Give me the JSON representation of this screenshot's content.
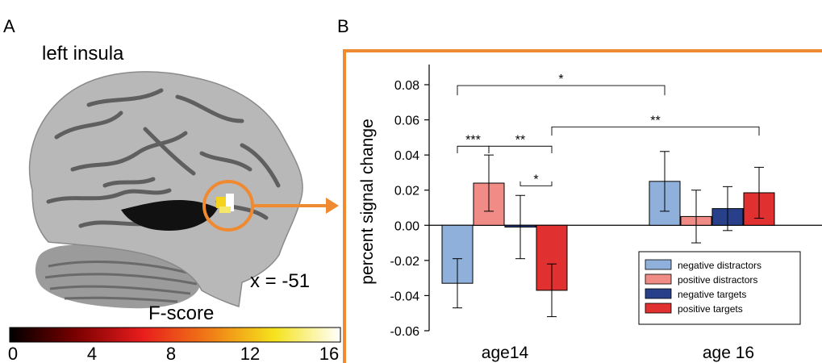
{
  "panels": {
    "a": {
      "letter": "A",
      "title": "left insula",
      "coordinate": "x = -51",
      "colorbar": {
        "title": "F-score",
        "ticks": [
          "0",
          "4",
          "8",
          "12",
          "16"
        ],
        "range": [
          0,
          16
        ],
        "colors": [
          "#000000",
          "#7a0000",
          "#e81c1c",
          "#f07a16",
          "#f5e31c",
          "#ffffff"
        ]
      },
      "highlight_color": "#f08a30"
    },
    "b": {
      "letter": "B"
    }
  },
  "chart_data": {
    "type": "bar",
    "title": "",
    "xlabel": "",
    "ylabel": "percent signal change",
    "categories": [
      "age14",
      "age 16"
    ],
    "ylim": [
      -0.06,
      0.09
    ],
    "yticks": [
      "0.08",
      "0.06",
      "0.04",
      "0.02",
      "0.00",
      "-0.02",
      "-0.04",
      "-0.06"
    ],
    "ytick_values": [
      0.08,
      0.06,
      0.04,
      0.02,
      0.0,
      -0.02,
      -0.04,
      -0.06
    ],
    "grid": false,
    "legend_position": "bottom-right",
    "frame_color": "#f08a30",
    "series": [
      {
        "name": "negative distractors",
        "color": "#8fb0da",
        "values": [
          -0.033,
          0.025
        ],
        "error": [
          0.014,
          0.017
        ]
      },
      {
        "name": "positive distractors",
        "color": "#f08b86",
        "values": [
          0.024,
          0.005
        ],
        "error": [
          0.016,
          0.015
        ]
      },
      {
        "name": "negative targets",
        "color": "#283f8a",
        "values": [
          -0.001,
          0.0095
        ],
        "error": [
          0.018,
          0.0125
        ]
      },
      {
        "name": "positive targets",
        "color": "#e03030",
        "values": [
          -0.037,
          0.0185
        ],
        "error": [
          0.015,
          0.0145
        ]
      }
    ],
    "significance": [
      "*",
      "***",
      "**",
      "*",
      "**"
    ]
  }
}
